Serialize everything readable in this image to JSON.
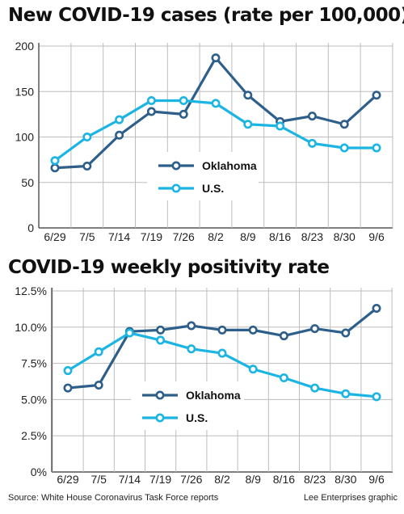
{
  "chart_data": [
    {
      "type": "line",
      "title": "New COVID-19 cases (rate per 100,000)",
      "categories": [
        "6/29",
        "7/5",
        "7/14",
        "7/19",
        "7/26",
        "8/2",
        "8/9",
        "8/16",
        "8/23",
        "8/30",
        "9/6"
      ],
      "yticks": [
        "0",
        "50",
        "100",
        "150",
        "200"
      ],
      "ylim": [
        0,
        200
      ],
      "grid": true,
      "legend_position": "center",
      "series": [
        {
          "name": "Oklahoma",
          "color": "#2e5f8a",
          "values": [
            66,
            68,
            102,
            128,
            125,
            187,
            146,
            117,
            123,
            114,
            146
          ]
        },
        {
          "name": "U.S.",
          "color": "#1cb5e3",
          "values": [
            74,
            100,
            119,
            140,
            140,
            137,
            114,
            112,
            93,
            88,
            88
          ]
        }
      ]
    },
    {
      "type": "line",
      "title": "COVID-19 weekly positivity rate",
      "categories": [
        "6/29",
        "7/5",
        "7/14",
        "7/19",
        "7/26",
        "8/2",
        "8/9",
        "8/16",
        "8/23",
        "8/30",
        "9/6"
      ],
      "yticks": [
        "0%",
        "2.5%",
        "5.0%",
        "7.5%",
        "10.0%",
        "12.5%"
      ],
      "ylim": [
        0,
        12.5
      ],
      "grid": true,
      "legend_position": "center",
      "series": [
        {
          "name": "Oklahoma",
          "color": "#2e5f8a",
          "values": [
            5.8,
            6.0,
            9.7,
            9.8,
            10.1,
            9.8,
            9.8,
            9.4,
            9.9,
            9.6,
            11.3
          ]
        },
        {
          "name": "U.S.",
          "color": "#1cb5e3",
          "values": [
            7.0,
            8.3,
            9.6,
            9.1,
            8.5,
            8.2,
            7.1,
            6.5,
            5.8,
            5.4,
            5.2
          ]
        }
      ]
    }
  ],
  "footer": {
    "source": "Source: White House Coronavirus Task Force reports",
    "credit": "Lee Enterprises graphic"
  }
}
